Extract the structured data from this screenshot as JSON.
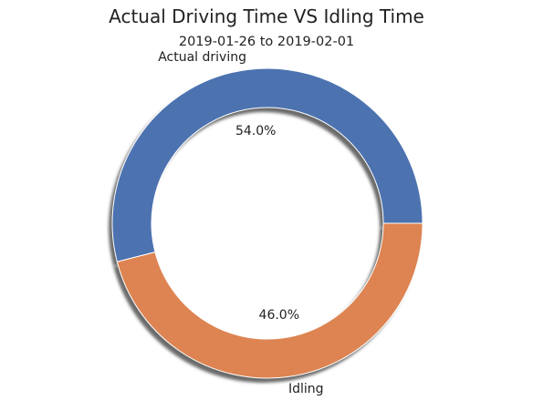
{
  "chart_data": {
    "type": "pie",
    "donut": true,
    "shadow": true,
    "title": "Actual Driving Time VS Idling Time",
    "subtitle": "2019-01-26 to 2019-02-01",
    "categories": [
      "Actual driving",
      "Idling"
    ],
    "values": [
      54.0,
      46.0
    ],
    "value_labels": [
      "54.0%",
      "46.0%"
    ],
    "colors": [
      "#4c72b0",
      "#dd8452"
    ],
    "start_angle_deg": 0,
    "legend": "none"
  }
}
